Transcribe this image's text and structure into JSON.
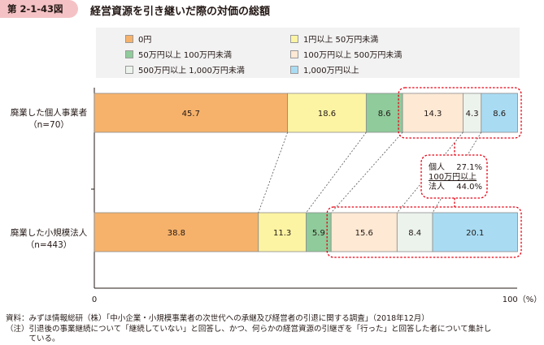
{
  "figure": {
    "number": "第 2-1-43図",
    "title": "経営資源を引き継いだ際の対価の総額"
  },
  "legend": [
    {
      "label": "0円",
      "color": "#f6b26b"
    },
    {
      "label": "1円以上 50万円未満",
      "color": "#fcf4a3"
    },
    {
      "label": "50万円以上 100万円未満",
      "color": "#8fcb9b"
    },
    {
      "label": "100万円以上 500万円未満",
      "color": "#fde9d4"
    },
    {
      "label": "500万円以上 1,000万円未満",
      "color": "#ebf3ec"
    },
    {
      "label": "1,000万円以上",
      "color": "#a9dcf3"
    }
  ],
  "rows": [
    {
      "label": "廃業した個人事業者",
      "n": "（n=70）"
    },
    {
      "label": "廃業した小規模法人",
      "n": "（n=443）"
    }
  ],
  "axis": {
    "min_label": "0",
    "max_label": "100（%）"
  },
  "callout": {
    "line1_label": "個人",
    "line1_value": "27.1%",
    "line2": "100万円以上",
    "line3_label": "法人",
    "line3_value": "44.0%"
  },
  "footnotes": [
    "資料：みずほ情報総研（株）「中小企業・小規模事業者の次世代への承継及び経営者の引退に関する調査」（2018年12月）",
    "（注）引退後の事業継続について「継続していない」と回答し、かつ、何らかの経営資源の引継ぎを「行った」と回答した者について集計し",
    "　　　ている。"
  ],
  "chart_data": {
    "type": "bar",
    "orientation": "horizontal",
    "stacked": true,
    "categories": [
      "廃業した個人事業者（n=70）",
      "廃業した小規模法人（n=443）"
    ],
    "series": [
      {
        "name": "0円",
        "values": [
          45.7,
          38.8
        ],
        "labels": [
          "45.7",
          "38.8"
        ]
      },
      {
        "name": "1円以上 50万円未満",
        "values": [
          18.6,
          11.3
        ],
        "labels": [
          "18.6",
          "11.3"
        ]
      },
      {
        "name": "50万円以上 100万円未満",
        "values": [
          8.6,
          5.9
        ],
        "labels": [
          "8.6",
          "5.9"
        ]
      },
      {
        "name": "100万円以上 500万円未満",
        "values": [
          14.3,
          15.6
        ],
        "labels": [
          "14.3",
          "15.6"
        ]
      },
      {
        "name": "500万円以上 1,000万円未満",
        "values": [
          4.3,
          8.4
        ],
        "labels": [
          "4.3",
          "8.4"
        ]
      },
      {
        "name": "1,000万円以上",
        "values": [
          8.6,
          20.1
        ],
        "labels": [
          "8.6",
          "20.1"
        ]
      }
    ],
    "xlim": [
      0,
      100
    ],
    "xlabel": "（%）",
    "grid": false,
    "legend_position": "top"
  }
}
